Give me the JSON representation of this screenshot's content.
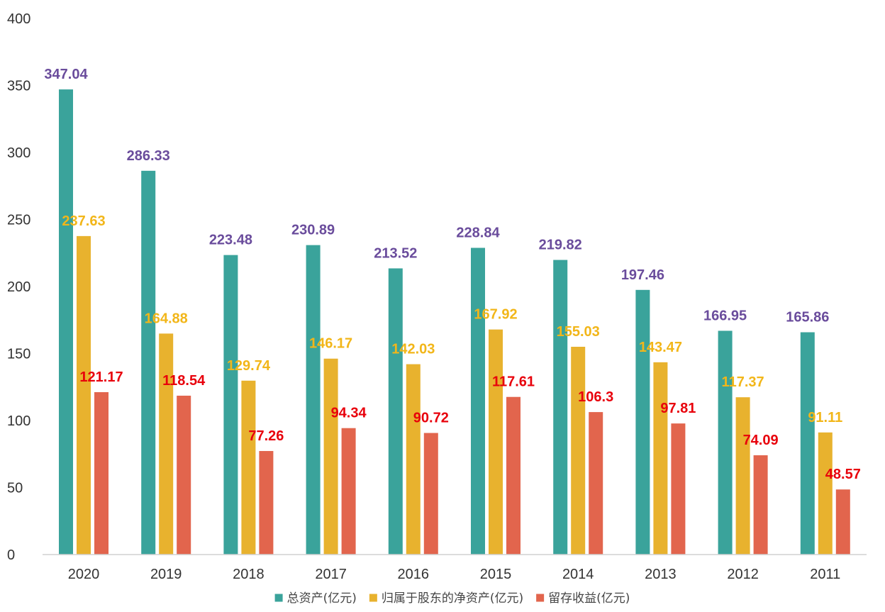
{
  "chart_data": {
    "type": "bar",
    "title": "",
    "xlabel": "",
    "ylabel": "",
    "ylim": [
      0,
      400
    ],
    "yticks": [
      0,
      50,
      100,
      150,
      200,
      250,
      300,
      350,
      400
    ],
    "grid": false,
    "legend_position": "bottom",
    "categories": [
      "2020",
      "2019",
      "2018",
      "2017",
      "2016",
      "2015",
      "2014",
      "2013",
      "2012",
      "2011"
    ],
    "series": [
      {
        "name": "总资产(亿元)",
        "color": "#3aa39b",
        "label_color": "#6a4c9c",
        "values": [
          347.04,
          286.33,
          223.48,
          230.89,
          213.52,
          228.84,
          219.82,
          197.46,
          166.95,
          165.86
        ],
        "labels": [
          "347.04",
          "286.33",
          "223.48",
          "230.89",
          "213.52",
          "228.84",
          "219.82",
          "197.46",
          "166.95",
          "165.86"
        ]
      },
      {
        "name": "归属于股东的净资产(亿元)",
        "color": "#e8b22e",
        "label_color": "#f2b619",
        "values": [
          237.63,
          164.88,
          129.74,
          146.17,
          142.03,
          167.92,
          155.03,
          143.47,
          117.37,
          91.11
        ],
        "labels": [
          "237.63",
          "164.88",
          "129.74",
          "146.17",
          "142.03",
          "167.92",
          "155.03",
          "143.47",
          "117.37",
          "91.11"
        ]
      },
      {
        "name": "留存收益(亿元)",
        "color": "#e2654d",
        "label_color": "#e8000b",
        "values": [
          121.17,
          118.54,
          77.26,
          94.34,
          90.72,
          117.61,
          106.3,
          97.81,
          74.09,
          48.57
        ],
        "labels": [
          "121.17",
          "118.54",
          "77.26",
          "94.34",
          "90.72",
          "117.61",
          "106.3",
          "97.81",
          "74.09",
          "48.57"
        ]
      }
    ]
  }
}
